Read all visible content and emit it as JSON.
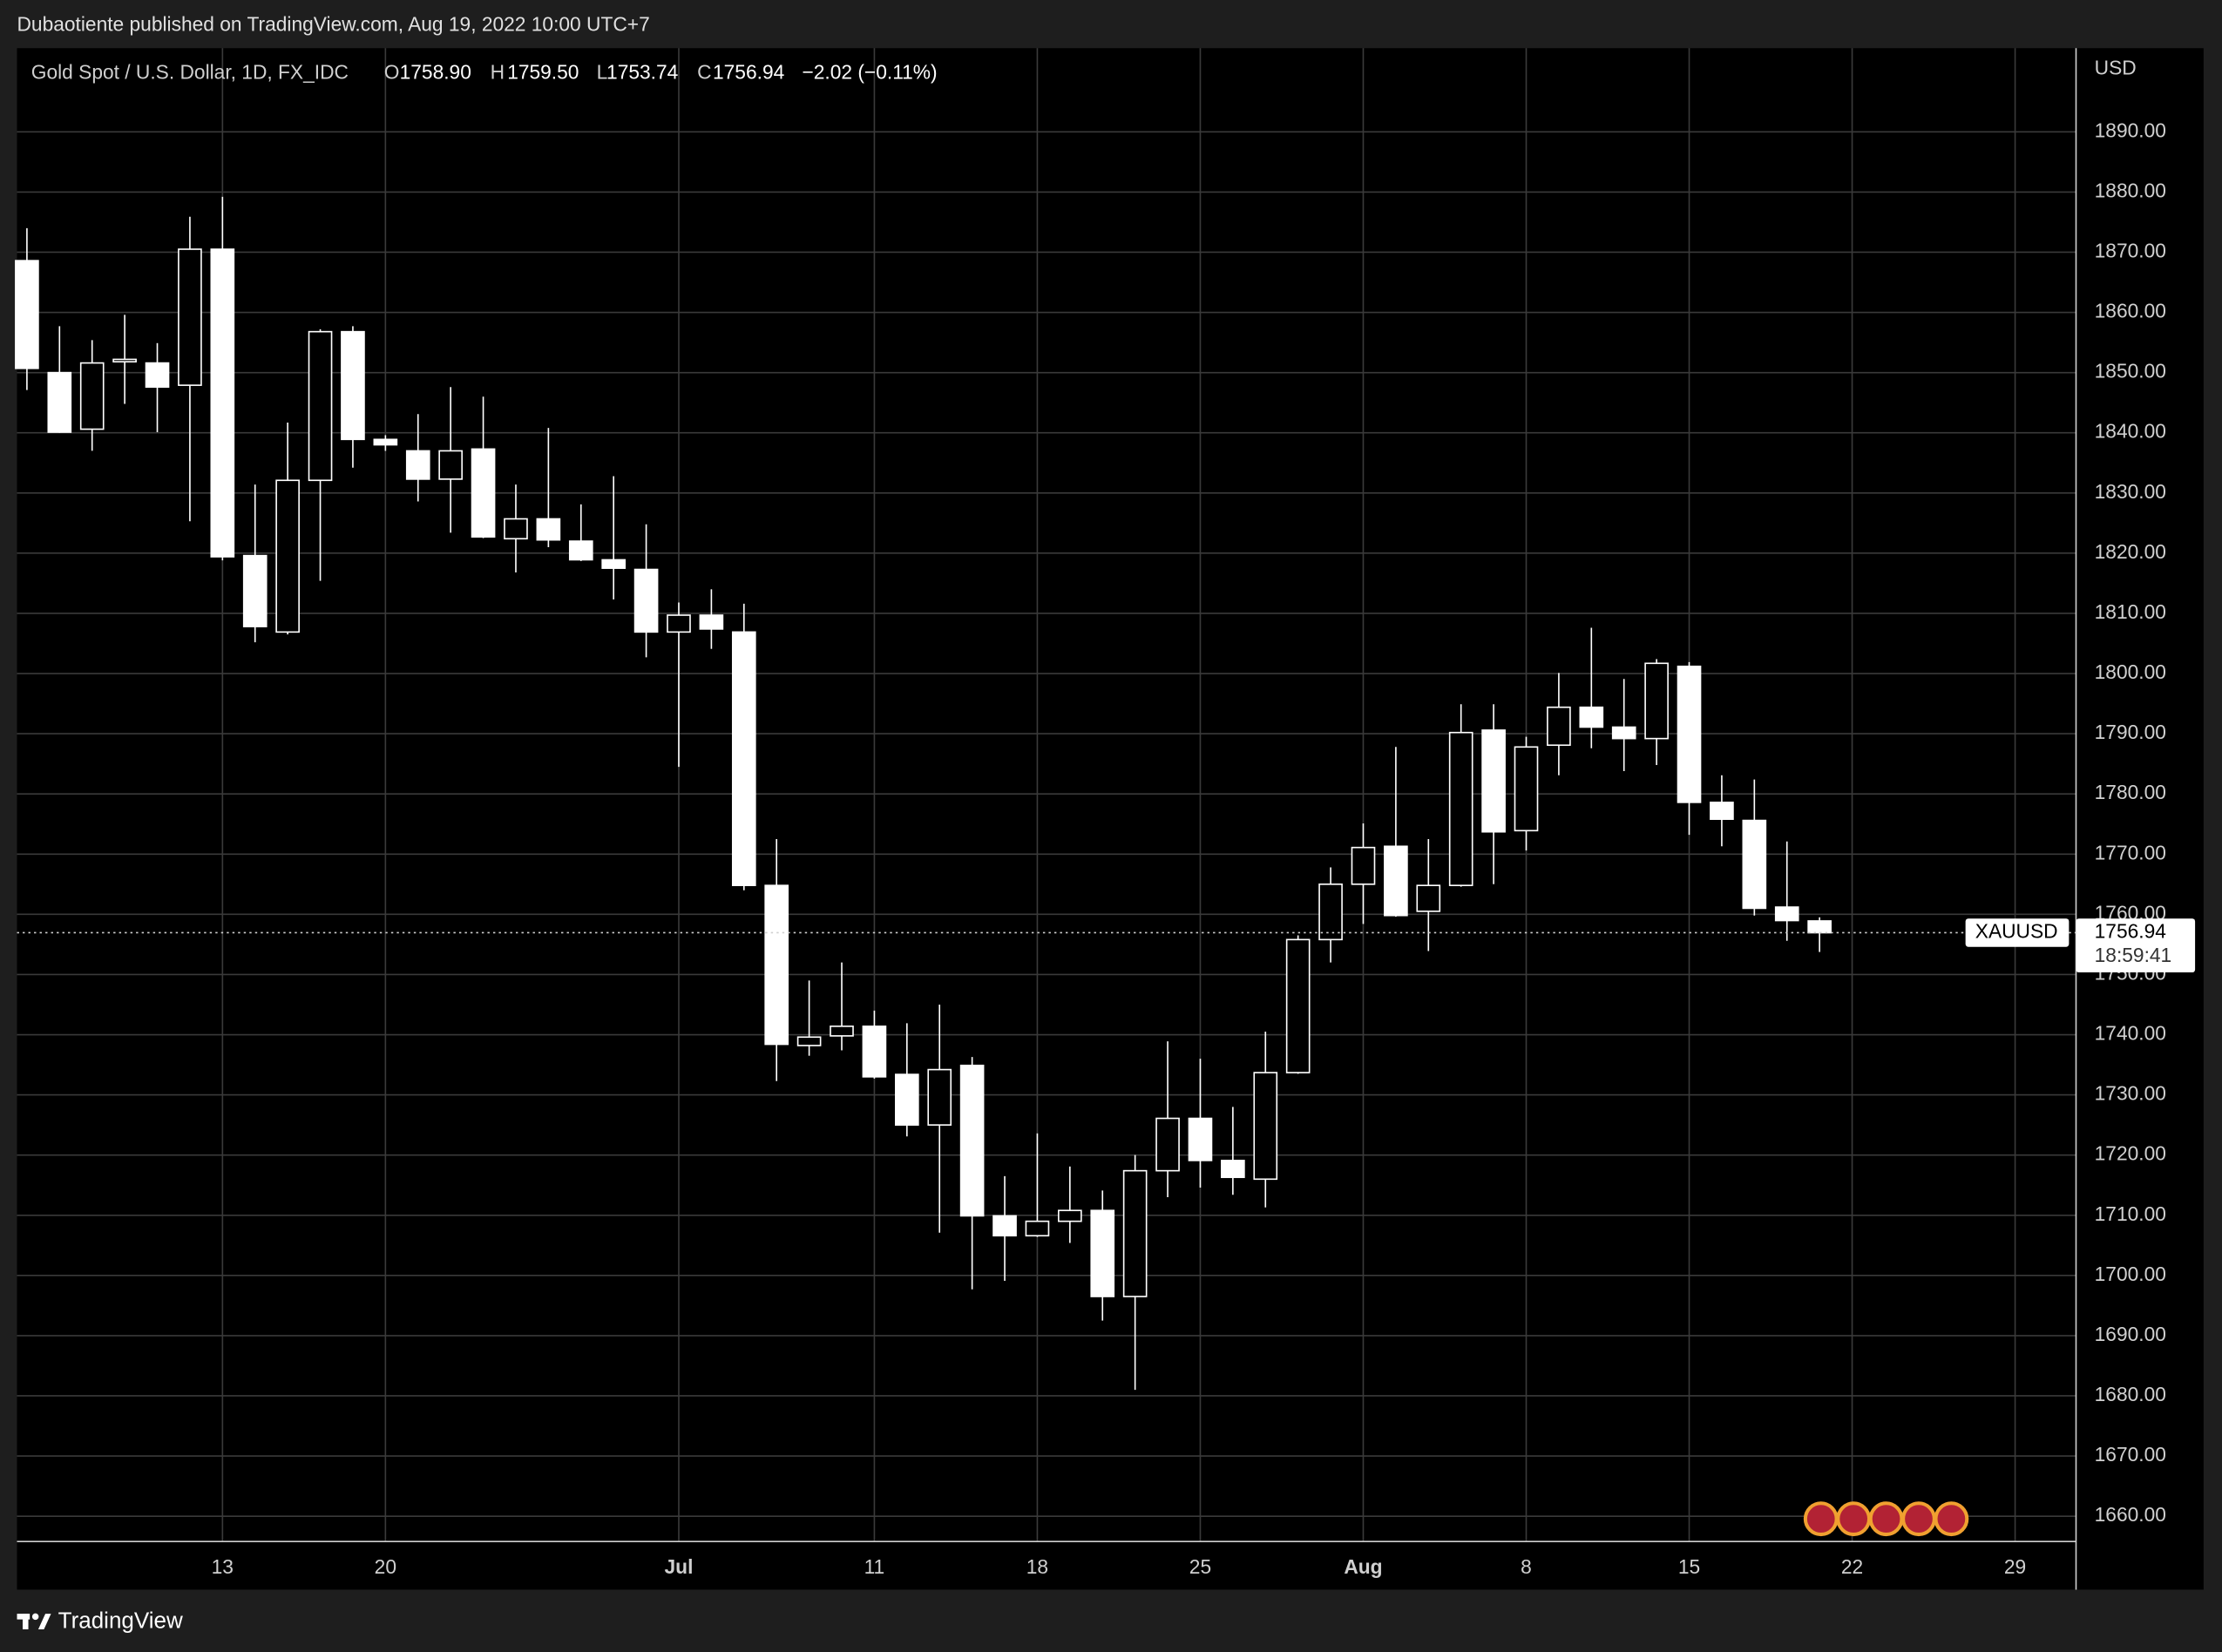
{
  "header": {
    "published": "Dubaotiente published on TradingView.com, Aug 19, 2022 10:00 UTC+7"
  },
  "footer": {
    "brand": "TradingView"
  },
  "chart_data": {
    "type": "candlestick",
    "legend": {
      "symbol": "Gold Spot / U.S. Dollar, 1D, FX_IDC",
      "open_label": "O",
      "open": "1758.90",
      "high_label": "H",
      "high": "1759.50",
      "low_label": "L",
      "low": "1753.74",
      "close_label": "C",
      "close": "1756.94",
      "change": "−2.02 (−0.11%)"
    },
    "currency": "USD",
    "x": [
      "2022-06-03",
      "2022-06-06",
      "2022-06-07",
      "2022-06-08",
      "2022-06-09",
      "2022-06-10",
      "2022-06-13",
      "2022-06-14",
      "2022-06-15",
      "2022-06-16",
      "2022-06-17",
      "2022-06-20",
      "2022-06-21",
      "2022-06-22",
      "2022-06-23",
      "2022-06-24",
      "2022-06-27",
      "2022-06-28",
      "2022-06-29",
      "2022-06-30",
      "2022-07-01",
      "2022-07-04",
      "2022-07-05",
      "2022-07-06",
      "2022-07-07",
      "2022-07-08",
      "2022-07-11",
      "2022-07-12",
      "2022-07-13",
      "2022-07-14",
      "2022-07-15",
      "2022-07-18",
      "2022-07-19",
      "2022-07-20",
      "2022-07-21",
      "2022-07-22",
      "2022-07-25",
      "2022-07-26",
      "2022-07-27",
      "2022-07-28",
      "2022-07-29",
      "2022-08-01",
      "2022-08-02",
      "2022-08-03",
      "2022-08-04",
      "2022-08-05",
      "2022-08-08",
      "2022-08-09",
      "2022-08-10",
      "2022-08-11",
      "2022-08-12",
      "2022-08-15",
      "2022-08-16",
      "2022-08-17",
      "2022-08-18",
      "2022-08-19"
    ],
    "series": [
      {
        "name": "XAUUSD",
        "color": "#ffffff",
        "open": [
          1868.6,
          1850.0,
          1840.6,
          1851.8,
          1851.6,
          1847.9,
          1870.5,
          1819.6,
          1806.9,
          1832.1,
          1856.8,
          1838.9,
          1837.0,
          1832.3,
          1837.3,
          1822.4,
          1825.7,
          1822.0,
          1818.9,
          1817.3,
          1806.9,
          1809.7,
          1806.9,
          1764.8,
          1738.2,
          1739.8,
          1741.4,
          1733.4,
          1725.0,
          1734.9,
          1709.9,
          1706.6,
          1709.0,
          1710.8,
          1696.5,
          1717.4,
          1726.1,
          1719.1,
          1716.0,
          1733.7,
          1755.8,
          1765.0,
          1771.3,
          1760.5,
          1764.8,
          1790.6,
          1773.9,
          1788.1,
          1794.4,
          1791.1,
          1789.2,
          1801.2,
          1778.6,
          1775.6,
          1761.2,
          1758.9
        ],
        "high": [
          1874.0,
          1857.7,
          1855.4,
          1859.6,
          1854.9,
          1875.9,
          1879.2,
          1831.4,
          1841.7,
          1857.2,
          1857.7,
          1839.6,
          1843.1,
          1847.6,
          1846.0,
          1831.4,
          1840.8,
          1828.1,
          1832.8,
          1824.8,
          1811.8,
          1814.0,
          1811.6,
          1772.5,
          1749.0,
          1752.0,
          1744.0,
          1741.9,
          1745.0,
          1736.3,
          1716.5,
          1723.6,
          1718.1,
          1714.1,
          1720.0,
          1738.9,
          1736.0,
          1728.0,
          1740.5,
          1756.5,
          1767.8,
          1775.1,
          1787.8,
          1772.5,
          1794.9,
          1794.9,
          1789.5,
          1800.1,
          1807.6,
          1799.1,
          1802.4,
          1801.9,
          1783.1,
          1782.4,
          1772.1,
          1759.5
        ],
        "low": [
          1847.1,
          1840.0,
          1837.0,
          1844.8,
          1840.1,
          1825.3,
          1818.8,
          1805.2,
          1806.5,
          1815.4,
          1834.2,
          1837.0,
          1828.6,
          1823.4,
          1822.5,
          1816.8,
          1821.0,
          1818.7,
          1812.3,
          1802.7,
          1784.5,
          1804.1,
          1764.0,
          1732.3,
          1736.5,
          1737.4,
          1732.7,
          1723.1,
          1707.1,
          1697.7,
          1699.1,
          1706.4,
          1705.4,
          1692.5,
          1681.0,
          1713.0,
          1714.6,
          1713.4,
          1711.3,
          1733.5,
          1752.0,
          1758.4,
          1759.6,
          1753.9,
          1764.6,
          1765.0,
          1770.6,
          1783.1,
          1787.6,
          1783.8,
          1784.8,
          1773.2,
          1771.3,
          1759.8,
          1755.6,
          1753.74
        ],
        "close": [
          1850.7,
          1840.1,
          1851.6,
          1852.2,
          1847.6,
          1870.5,
          1819.4,
          1807.8,
          1832.1,
          1856.8,
          1838.9,
          1838.0,
          1832.3,
          1837.0,
          1822.7,
          1825.7,
          1822.2,
          1818.9,
          1817.5,
          1806.9,
          1809.7,
          1807.4,
          1764.8,
          1738.4,
          1739.6,
          1741.4,
          1733.0,
          1725.0,
          1734.2,
          1709.9,
          1706.6,
          1709.0,
          1710.8,
          1696.5,
          1717.4,
          1726.1,
          1719.1,
          1716.3,
          1733.7,
          1755.8,
          1765.0,
          1771.1,
          1759.8,
          1764.8,
          1790.2,
          1773.7,
          1787.8,
          1794.4,
          1791.1,
          1789.2,
          1801.7,
          1778.6,
          1775.8,
          1761.0,
          1758.96,
          1756.94
        ]
      }
    ],
    "last_price_label": "1756.94",
    "countdown": "18:59:41",
    "ylim": [
      1655.8,
      1903.9
    ],
    "yticks": [
      {
        "value": 1660,
        "label": "1660.00"
      },
      {
        "value": 1670,
        "label": "1670.00"
      },
      {
        "value": 1680,
        "label": "1680.00"
      },
      {
        "value": 1690,
        "label": "1690.00"
      },
      {
        "value": 1700,
        "label": "1700.00"
      },
      {
        "value": 1710,
        "label": "1710.00"
      },
      {
        "value": 1720,
        "label": "1720.00"
      },
      {
        "value": 1730,
        "label": "1730.00"
      },
      {
        "value": 1740,
        "label": "1740.00"
      },
      {
        "value": 1750,
        "label": "1750.00"
      },
      {
        "value": 1760,
        "label": "1760.00"
      },
      {
        "value": 1770,
        "label": "1770.00"
      },
      {
        "value": 1780,
        "label": "1780.00"
      },
      {
        "value": 1790,
        "label": "1790.00"
      },
      {
        "value": 1800,
        "label": "1800.00"
      },
      {
        "value": 1810,
        "label": "1810.00"
      },
      {
        "value": 1820,
        "label": "1820.00"
      },
      {
        "value": 1830,
        "label": "1830.00"
      },
      {
        "value": 1840,
        "label": "1840.00"
      },
      {
        "value": 1850,
        "label": "1850.00"
      },
      {
        "value": 1860,
        "label": "1860.00"
      },
      {
        "value": 1870,
        "label": "1870.00"
      },
      {
        "value": 1880,
        "label": "1880.00"
      },
      {
        "value": 1890,
        "label": "1890.00"
      }
    ],
    "xticks": [
      {
        "value": "2022-06-13",
        "label": "13"
      },
      {
        "value": "2022-06-20",
        "label": "20"
      },
      {
        "value": "2022-07-01",
        "label": "Jul"
      },
      {
        "value": "2022-07-11",
        "label": "11"
      },
      {
        "value": "2022-07-18",
        "label": "18"
      },
      {
        "value": "2022-07-25",
        "label": "25"
      },
      {
        "value": "2022-08-01",
        "label": "Aug"
      },
      {
        "value": "2022-08-08",
        "label": "8"
      },
      {
        "value": "2022-08-15",
        "label": "15"
      },
      {
        "value": "2022-08-22",
        "label": "22"
      },
      {
        "value": "2022-08-29",
        "label": "29"
      }
    ],
    "grid": true
  }
}
